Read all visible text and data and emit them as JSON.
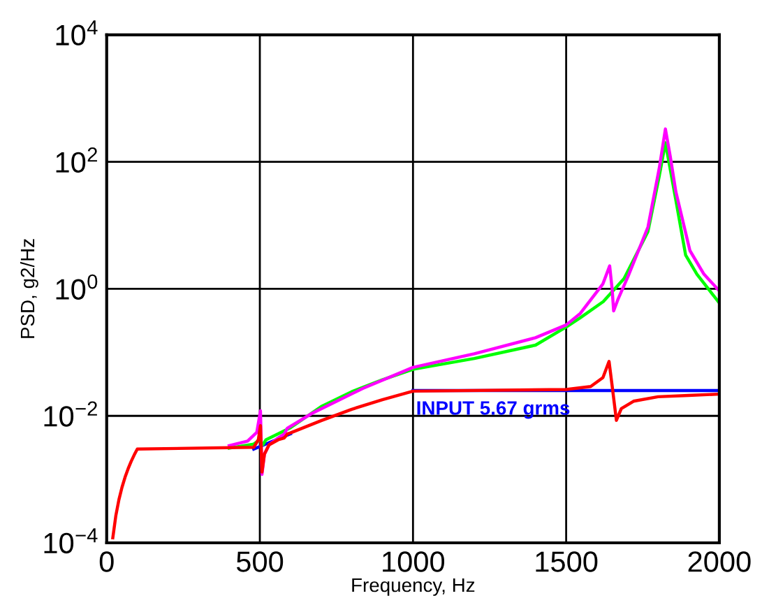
{
  "chart_data": {
    "type": "line",
    "xlabel": "Frequency, Hz",
    "ylabel": "PSD, g2/Hz",
    "log": "y",
    "grid": true,
    "legend": false,
    "marker": "none",
    "line_style": "solid",
    "xlim": [
      0,
      2000
    ],
    "xticks": [
      0,
      500,
      1000,
      1500,
      2000
    ],
    "ylim": [
      0.0001,
      10000
    ],
    "yticks": [
      {
        "value": 0.0001,
        "label": "10$^{−4}$"
      },
      {
        "value": 0.01,
        "label": "10$^{−2}$"
      },
      {
        "value": 1,
        "label": "10$^{0}$"
      },
      {
        "value": 100,
        "label": "10$^{2}$"
      },
      {
        "value": 10000,
        "label": "10$^{4}$"
      }
    ],
    "annotations": [
      "INPUT 5.67 grms"
    ],
    "series": [
      {
        "color": "#0000ff",
        "x": [
          480,
          600,
          700,
          800,
          1000,
          2000
        ],
        "values": [
          0.003,
          0.0052,
          null,
          null,
          0.025,
          0.025
        ]
      },
      {
        "color": "#00ff00",
        "x": [
          400,
          480,
          500,
          510,
          520,
          600,
          700,
          800,
          900,
          1000,
          1200,
          1400,
          1500,
          1546,
          1621,
          1689,
          1767,
          1804,
          1824,
          1858,
          1890,
          1927,
          2000
        ],
        "values": [
          0.0031,
          0.0036,
          0.0042,
          0.0035,
          0.0042,
          0.0065,
          0.014,
          0.024,
          0.037,
          0.054,
          0.08,
          0.13,
          0.25,
          0.35,
          0.63,
          1.45,
          8,
          60,
          200,
          25,
          3.4,
          1.7,
          0.6
        ]
      },
      {
        "color": "#ff00ff",
        "x": [
          400,
          460,
          490,
          502,
          507,
          515,
          530,
          560,
          580,
          590,
          671,
          836,
          1000,
          1200,
          1400,
          1500,
          1546,
          1620,
          1642,
          1650,
          1655,
          1670,
          1705,
          1767,
          1804,
          1824,
          1840,
          1858,
          1904,
          1950,
          2000
        ],
        "values": [
          0.0034,
          0.004,
          0.0055,
          0.012,
          0.0012,
          0.0025,
          0.0035,
          0.0045,
          0.0052,
          0.0064,
          0.011,
          0.027,
          0.058,
          0.095,
          0.17,
          0.27,
          0.41,
          1.2,
          2.3,
          1.0,
          0.45,
          0.7,
          1.7,
          9.4,
          80,
          330,
          120,
          34,
          4,
          1.7,
          0.93
        ]
      },
      {
        "color": "#ff0000",
        "x": [
          20,
          30,
          40,
          50,
          60,
          70,
          80,
          90,
          100,
          480,
          495,
          502,
          507,
          515,
          530,
          560,
          580,
          590,
          600,
          700,
          800,
          900,
          1000,
          1500,
          1580,
          1620,
          1640,
          1650,
          1664,
          1680,
          1720,
          1800,
          1900,
          2000
        ],
        "values": [
          0.00012,
          0.00027,
          0.00048,
          0.00075,
          0.00108,
          0.00147,
          0.00192,
          0.00243,
          0.003,
          0.0032,
          0.0042,
          0.007,
          0.0013,
          0.0025,
          0.0035,
          0.0042,
          0.0045,
          0.0052,
          0.0054,
          0.0084,
          0.0127,
          0.018,
          0.0245,
          0.026,
          0.029,
          0.04,
          0.072,
          0.03,
          0.0085,
          0.013,
          0.017,
          0.02,
          0.021,
          0.022
        ]
      }
    ]
  }
}
